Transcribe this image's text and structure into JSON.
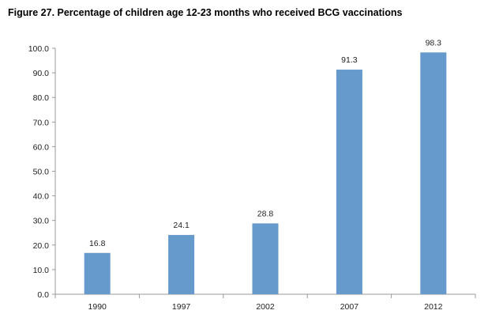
{
  "figure": {
    "title": "Figure 27. Percentage of children age 12-23 months who received BCG vaccinations"
  },
  "chart_data": {
    "type": "bar",
    "title": "Figure 27. Percentage of children age 12-23 months who received BCG vaccinations",
    "categories": [
      "1990",
      "1997",
      "2002",
      "2007",
      "2012"
    ],
    "values": [
      16.8,
      24.1,
      28.8,
      91.3,
      98.3
    ],
    "value_labels": [
      "16.8",
      "24.1",
      "28.8",
      "91.3",
      "98.3"
    ],
    "xlabel": "",
    "ylabel": "",
    "ylim": [
      0,
      100
    ],
    "yticks": [
      "0.0",
      "10.0",
      "20.0",
      "30.0",
      "40.0",
      "50.0",
      "60.0",
      "70.0",
      "80.0",
      "90.0",
      "100.0"
    ],
    "grid": false,
    "legend": "none",
    "bar_color": "#6699cc",
    "axis_color": "#999999"
  }
}
